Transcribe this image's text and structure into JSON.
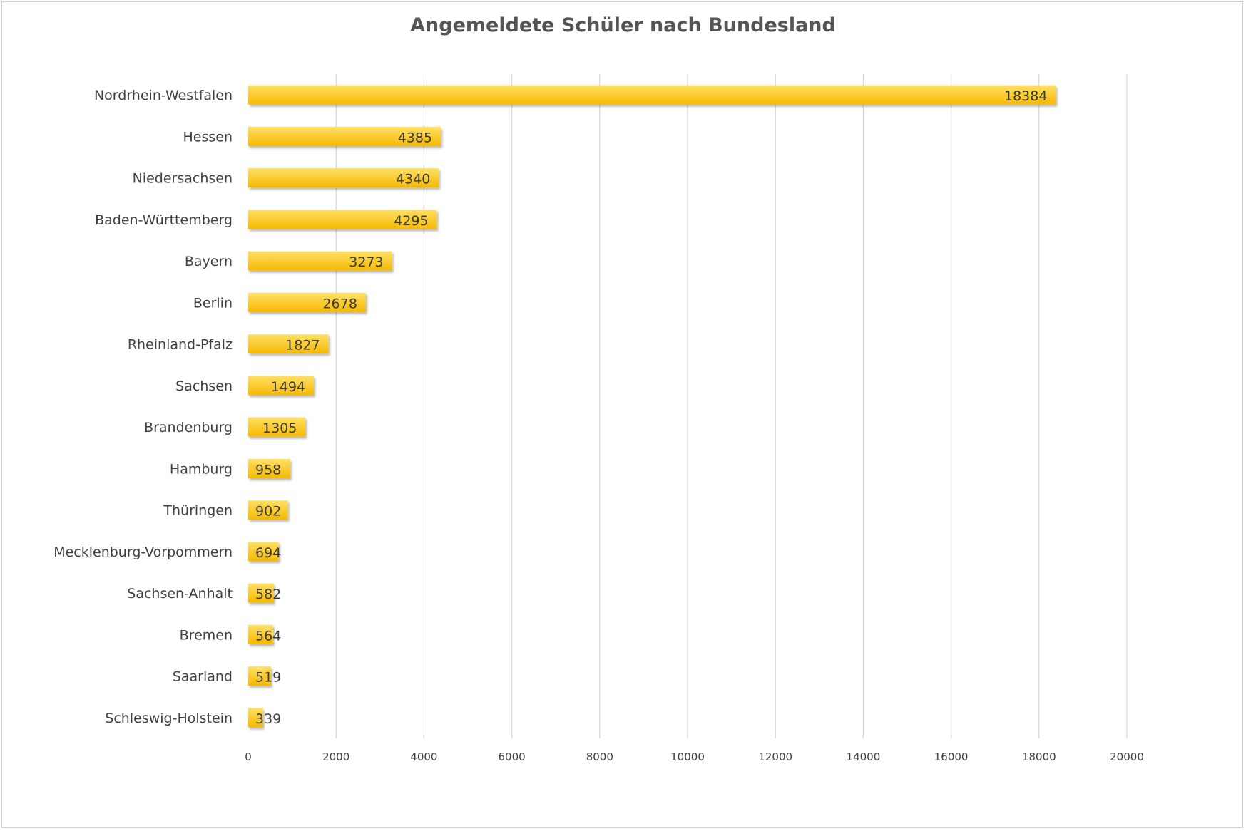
{
  "chart_data": {
    "type": "bar",
    "orientation": "horizontal",
    "title": "Angemeldete Schüler nach Bundesland",
    "xlabel": "",
    "ylabel": "",
    "categories": [
      "Nordrhein-Westfalen",
      "Hessen",
      "Niedersachsen",
      "Baden-Württemberg",
      "Bayern",
      "Berlin",
      "Rheinland-Pfalz",
      "Sachsen",
      "Brandenburg",
      "Hamburg",
      "Thüringen",
      "Mecklenburg-Vorpommern",
      "Sachsen-Anhalt",
      "Bremen",
      "Saarland",
      "Schleswig-Holstein"
    ],
    "values": [
      18384,
      4385,
      4340,
      4295,
      3273,
      2678,
      1827,
      1494,
      1305,
      958,
      902,
      694,
      582,
      564,
      519,
      339
    ],
    "xlim": [
      0,
      20000
    ],
    "xticks": [
      0,
      2000,
      4000,
      6000,
      8000,
      10000,
      12000,
      14000,
      16000,
      18000,
      20000
    ],
    "grid": "vertical",
    "legend": "none",
    "data_labels": true,
    "colors": {
      "bar_top": "#ffe066",
      "bar_bottom": "#f5b800",
      "grid": "#d9d9d9",
      "text": "#404040"
    }
  }
}
